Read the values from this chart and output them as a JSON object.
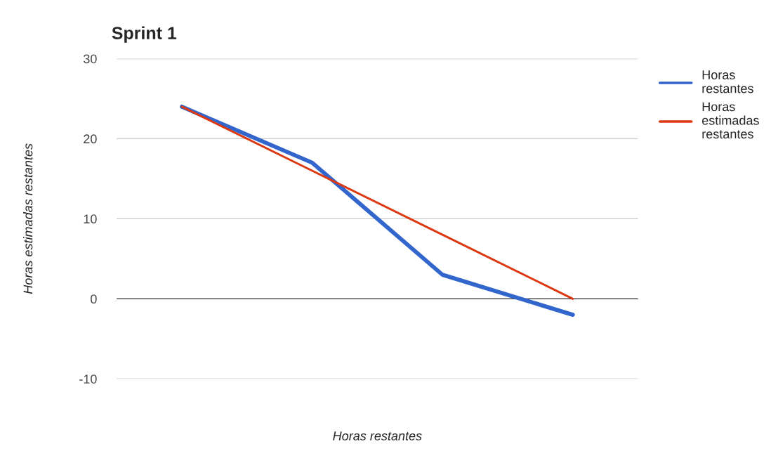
{
  "chart_data": {
    "type": "line",
    "title": "Sprint 1",
    "xlabel": "Horas restantes",
    "ylabel": "Horas estimadas restantes",
    "categories": [
      null,
      null,
      null,
      null
    ],
    "series": [
      {
        "name": "Horas restantes",
        "color": "#3366cc",
        "values": [
          24,
          17,
          3,
          -2
        ]
      },
      {
        "name": "Horas estimadas restantes",
        "color": "#dc3912",
        "values": [
          24,
          16,
          8,
          0
        ]
      }
    ],
    "ylim": [
      -10,
      30
    ],
    "yticks": [
      -10,
      0,
      10,
      20,
      30
    ],
    "grid": "y",
    "legend": "top right",
    "marker": "none",
    "line_style": "solid",
    "ref_lines": [
      {
        "axis": "y",
        "value": 0,
        "color": "#333333"
      }
    ]
  }
}
